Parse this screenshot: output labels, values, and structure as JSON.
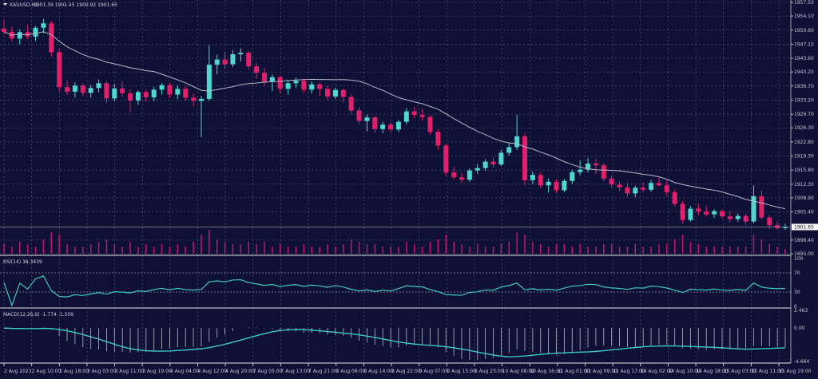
{
  "header": {
    "symbol": "XAUUSD,H1",
    "ohlc": "1901.39 1902.45 1900.92 1901.65"
  },
  "colors": {
    "background": "#0f1035",
    "bull": "#4fd6d0",
    "bear": "#e0206a",
    "ma": "#b8b8c8",
    "rsi": "#3ec8c8",
    "macd": "#3ec8c8",
    "volume": "#c0186a",
    "grid": "#5a5f88"
  },
  "chart_data": [
    {
      "type": "candlestick",
      "title": "XAUUSD,H1",
      "price_axis_labels": [
        "1957.50",
        "1954.10",
        "1950.60",
        "1947.10",
        "1943.60",
        "1940.20",
        "1936.70",
        "1933.20",
        "1929.70",
        "1926.30",
        "1922.80",
        "1919.30",
        "1915.80",
        "1912.30",
        "1908.90",
        "1905.40",
        "1898.40",
        "1895.00"
      ],
      "current_price": "1901.65",
      "ylim": [
        1895.0,
        1957.5
      ],
      "time_labels": [
        "2 Aug 2023",
        "2 Aug 10:00",
        "2 Aug 18:00",
        "3 Aug 03:00",
        "3 Aug 11:00",
        "3 Aug 19:00",
        "4 Aug 04:00",
        "4 Aug 12:00",
        "4 Aug 20:00",
        "7 Aug 05:00",
        "7 Aug 13:00",
        "7 Aug 21:00",
        "8 Aug 06:00",
        "8 Aug 14:00",
        "8 Aug 22:00",
        "9 Aug 07:00",
        "9 Aug 15:00",
        "9 Aug 23:00",
        "10 Aug 08:00",
        "10 Aug 16:00",
        "11 Aug 01:00",
        "11 Aug 09:00",
        "11 Aug 17:00",
        "14 Aug 02:00",
        "14 Aug 10:00",
        "14 Aug 18:00",
        "15 Aug 03:00",
        "15 Aug 11:00",
        "15 Aug 19:00"
      ],
      "ohlc": [
        [
          1951.0,
          1953.2,
          1949.5,
          1950.2
        ],
        [
          1950.2,
          1951.5,
          1947.8,
          1948.5
        ],
        [
          1948.5,
          1950.8,
          1947.0,
          1950.1
        ],
        [
          1950.1,
          1952.0,
          1948.3,
          1949.0
        ],
        [
          1949.0,
          1951.6,
          1947.9,
          1951.2
        ],
        [
          1951.2,
          1953.4,
          1949.8,
          1952.3
        ],
        [
          1952.3,
          1952.9,
          1944.0,
          1945.1
        ],
        [
          1945.1,
          1946.0,
          1935.2,
          1936.4
        ],
        [
          1936.4,
          1938.1,
          1934.5,
          1935.3
        ],
        [
          1935.3,
          1937.6,
          1933.9,
          1936.8
        ],
        [
          1936.8,
          1937.4,
          1934.2,
          1935.0
        ],
        [
          1935.0,
          1936.9,
          1933.8,
          1936.2
        ],
        [
          1936.2,
          1938.3,
          1935.1,
          1937.4
        ],
        [
          1937.4,
          1938.0,
          1932.5,
          1933.6
        ],
        [
          1933.6,
          1937.2,
          1932.9,
          1936.1
        ],
        [
          1936.1,
          1937.8,
          1934.0,
          1934.9
        ],
        [
          1934.9,
          1935.8,
          1930.2,
          1933.1
        ],
        [
          1933.1,
          1935.6,
          1932.0,
          1935.2
        ],
        [
          1935.2,
          1936.0,
          1932.8,
          1933.9
        ],
        [
          1933.9,
          1936.5,
          1933.0,
          1935.8
        ],
        [
          1935.8,
          1937.4,
          1934.6,
          1936.9
        ],
        [
          1936.9,
          1937.5,
          1933.7,
          1934.6
        ],
        [
          1934.6,
          1936.8,
          1933.5,
          1936.0
        ],
        [
          1936.0,
          1936.6,
          1933.1,
          1933.8
        ],
        [
          1933.8,
          1934.9,
          1931.6,
          1933.0
        ],
        [
          1933.0,
          1934.2,
          1924.0,
          1933.5
        ],
        [
          1933.5,
          1946.8,
          1933.0,
          1942.0
        ],
        [
          1942.0,
          1944.5,
          1939.6,
          1943.3
        ],
        [
          1943.3,
          1945.2,
          1941.0,
          1942.1
        ],
        [
          1942.1,
          1945.6,
          1941.4,
          1944.6
        ],
        [
          1944.6,
          1946.1,
          1942.8,
          1945.0
        ],
        [
          1945.0,
          1945.5,
          1940.8,
          1941.6
        ],
        [
          1941.6,
          1942.4,
          1938.5,
          1940.0
        ],
        [
          1940.0,
          1941.2,
          1936.9,
          1937.8
        ],
        [
          1937.8,
          1939.6,
          1935.4,
          1938.9
        ],
        [
          1938.9,
          1939.3,
          1934.8,
          1936.0
        ],
        [
          1936.0,
          1938.2,
          1934.6,
          1937.4
        ],
        [
          1937.4,
          1938.8,
          1936.2,
          1938.0
        ],
        [
          1938.0,
          1938.5,
          1935.0,
          1935.8
        ],
        [
          1935.8,
          1937.9,
          1934.9,
          1937.1
        ],
        [
          1937.1,
          1937.6,
          1934.3,
          1936.0
        ],
        [
          1936.0,
          1936.8,
          1933.2,
          1934.1
        ],
        [
          1934.1,
          1936.3,
          1933.5,
          1935.7
        ],
        [
          1935.7,
          1936.1,
          1932.6,
          1934.0
        ],
        [
          1934.0,
          1934.7,
          1929.8,
          1930.6
        ],
        [
          1930.6,
          1931.4,
          1927.2,
          1928.0
        ],
        [
          1928.0,
          1929.6,
          1925.4,
          1928.9
        ],
        [
          1928.9,
          1929.3,
          1925.1,
          1926.0
        ],
        [
          1926.0,
          1927.8,
          1925.0,
          1927.1
        ],
        [
          1927.1,
          1927.6,
          1925.2,
          1925.9
        ],
        [
          1925.9,
          1928.3,
          1925.3,
          1927.8
        ],
        [
          1927.8,
          1931.2,
          1927.2,
          1930.4
        ],
        [
          1930.4,
          1931.6,
          1928.7,
          1929.5
        ],
        [
          1929.5,
          1931.0,
          1928.1,
          1929.0
        ],
        [
          1929.0,
          1929.4,
          1924.6,
          1925.3
        ],
        [
          1925.3,
          1926.0,
          1920.8,
          1921.9
        ],
        [
          1921.9,
          1922.4,
          1914.3,
          1915.2
        ],
        [
          1915.2,
          1916.6,
          1913.4,
          1914.0
        ],
        [
          1914.0,
          1915.1,
          1912.6,
          1913.4
        ],
        [
          1913.4,
          1916.2,
          1912.9,
          1915.7
        ],
        [
          1915.7,
          1917.3,
          1914.8,
          1916.3
        ],
        [
          1916.3,
          1918.5,
          1915.6,
          1917.9
        ],
        [
          1917.9,
          1919.0,
          1916.4,
          1917.2
        ],
        [
          1917.2,
          1920.8,
          1916.8,
          1920.1
        ],
        [
          1920.1,
          1922.6,
          1919.4,
          1921.5
        ],
        [
          1921.5,
          1929.5,
          1920.8,
          1924.2
        ],
        [
          1924.2,
          1924.9,
          1912.0,
          1913.3
        ],
        [
          1913.3,
          1915.4,
          1912.2,
          1914.6
        ],
        [
          1914.6,
          1915.2,
          1911.3,
          1912.0
        ],
        [
          1912.0,
          1913.8,
          1910.2,
          1912.9
        ],
        [
          1912.9,
          1913.5,
          1910.1,
          1910.8
        ],
        [
          1910.8,
          1913.6,
          1910.3,
          1913.1
        ],
        [
          1913.1,
          1915.9,
          1912.4,
          1915.3
        ],
        [
          1915.3,
          1918.2,
          1914.5,
          1915.9
        ],
        [
          1915.9,
          1918.8,
          1915.2,
          1917.4
        ],
        [
          1917.4,
          1918.6,
          1914.8,
          1917.0
        ],
        [
          1917.0,
          1917.6,
          1913.0,
          1913.7
        ],
        [
          1913.7,
          1914.4,
          1911.5,
          1912.2
        ],
        [
          1912.2,
          1913.0,
          1910.6,
          1911.5
        ],
        [
          1911.5,
          1912.6,
          1909.2,
          1910.0
        ],
        [
          1910.0,
          1911.9,
          1909.1,
          1911.4
        ],
        [
          1911.4,
          1912.8,
          1910.2,
          1910.9
        ],
        [
          1910.9,
          1913.4,
          1910.4,
          1912.6
        ],
        [
          1912.6,
          1914.3,
          1911.8,
          1912.0
        ],
        [
          1912.0,
          1913.2,
          1909.4,
          1910.3
        ],
        [
          1910.3,
          1911.0,
          1906.7,
          1907.4
        ],
        [
          1907.4,
          1908.2,
          1902.5,
          1903.4
        ],
        [
          1903.4,
          1906.9,
          1903.0,
          1906.2
        ],
        [
          1906.2,
          1907.4,
          1904.6,
          1905.5
        ],
        [
          1905.5,
          1906.8,
          1904.2,
          1904.8
        ],
        [
          1904.8,
          1906.1,
          1903.9,
          1905.6
        ],
        [
          1905.6,
          1906.0,
          1903.7,
          1904.3
        ],
        [
          1904.3,
          1905.5,
          1902.8,
          1903.6
        ],
        [
          1903.6,
          1905.0,
          1902.9,
          1904.4
        ],
        [
          1904.4,
          1904.9,
          1902.2,
          1903.0
        ],
        [
          1903.0,
          1912.0,
          1902.6,
          1909.3
        ],
        [
          1909.3,
          1910.8,
          1903.5,
          1904.0
        ],
        [
          1904.0,
          1904.6,
          1901.2,
          1902.1
        ],
        [
          1902.1,
          1903.0,
          1900.9,
          1901.4
        ],
        [
          1901.39,
          1902.45,
          1900.92,
          1901.65
        ]
      ],
      "volume": [
        4,
        3,
        5,
        4,
        3,
        6,
        9,
        8,
        4,
        3,
        3,
        4,
        5,
        6,
        4,
        3,
        5,
        3,
        4,
        3,
        4,
        3,
        4,
        3,
        5,
        8,
        10,
        6,
        5,
        4,
        4,
        5,
        4,
        5,
        3,
        4,
        3,
        3,
        4,
        3,
        3,
        4,
        3,
        4,
        6,
        5,
        4,
        4,
        3,
        3,
        3,
        5,
        4,
        3,
        5,
        6,
        8,
        5,
        4,
        3,
        4,
        3,
        3,
        4,
        5,
        9,
        8,
        5,
        4,
        3,
        4,
        4,
        3,
        4,
        3,
        3,
        4,
        4,
        3,
        3,
        4,
        3,
        3,
        4,
        4,
        6,
        8,
        5,
        4,
        3,
        3,
        3,
        3,
        3,
        3,
        8,
        6,
        4,
        3,
        2
      ]
    },
    {
      "type": "line",
      "title": "RSI(14) 38.3439",
      "axis_labels": [
        "100",
        "70",
        "30",
        "0"
      ],
      "levels": [
        70,
        30
      ],
      "ylim": [
        0,
        100
      ]
    },
    {
      "type": "bar",
      "title": "MACD(12,26,9) -1.774 -1.509",
      "axis_labels": [
        "2.463",
        "0.00",
        "-4.664"
      ],
      "ylim": [
        -4.664,
        2.463
      ]
    }
  ]
}
